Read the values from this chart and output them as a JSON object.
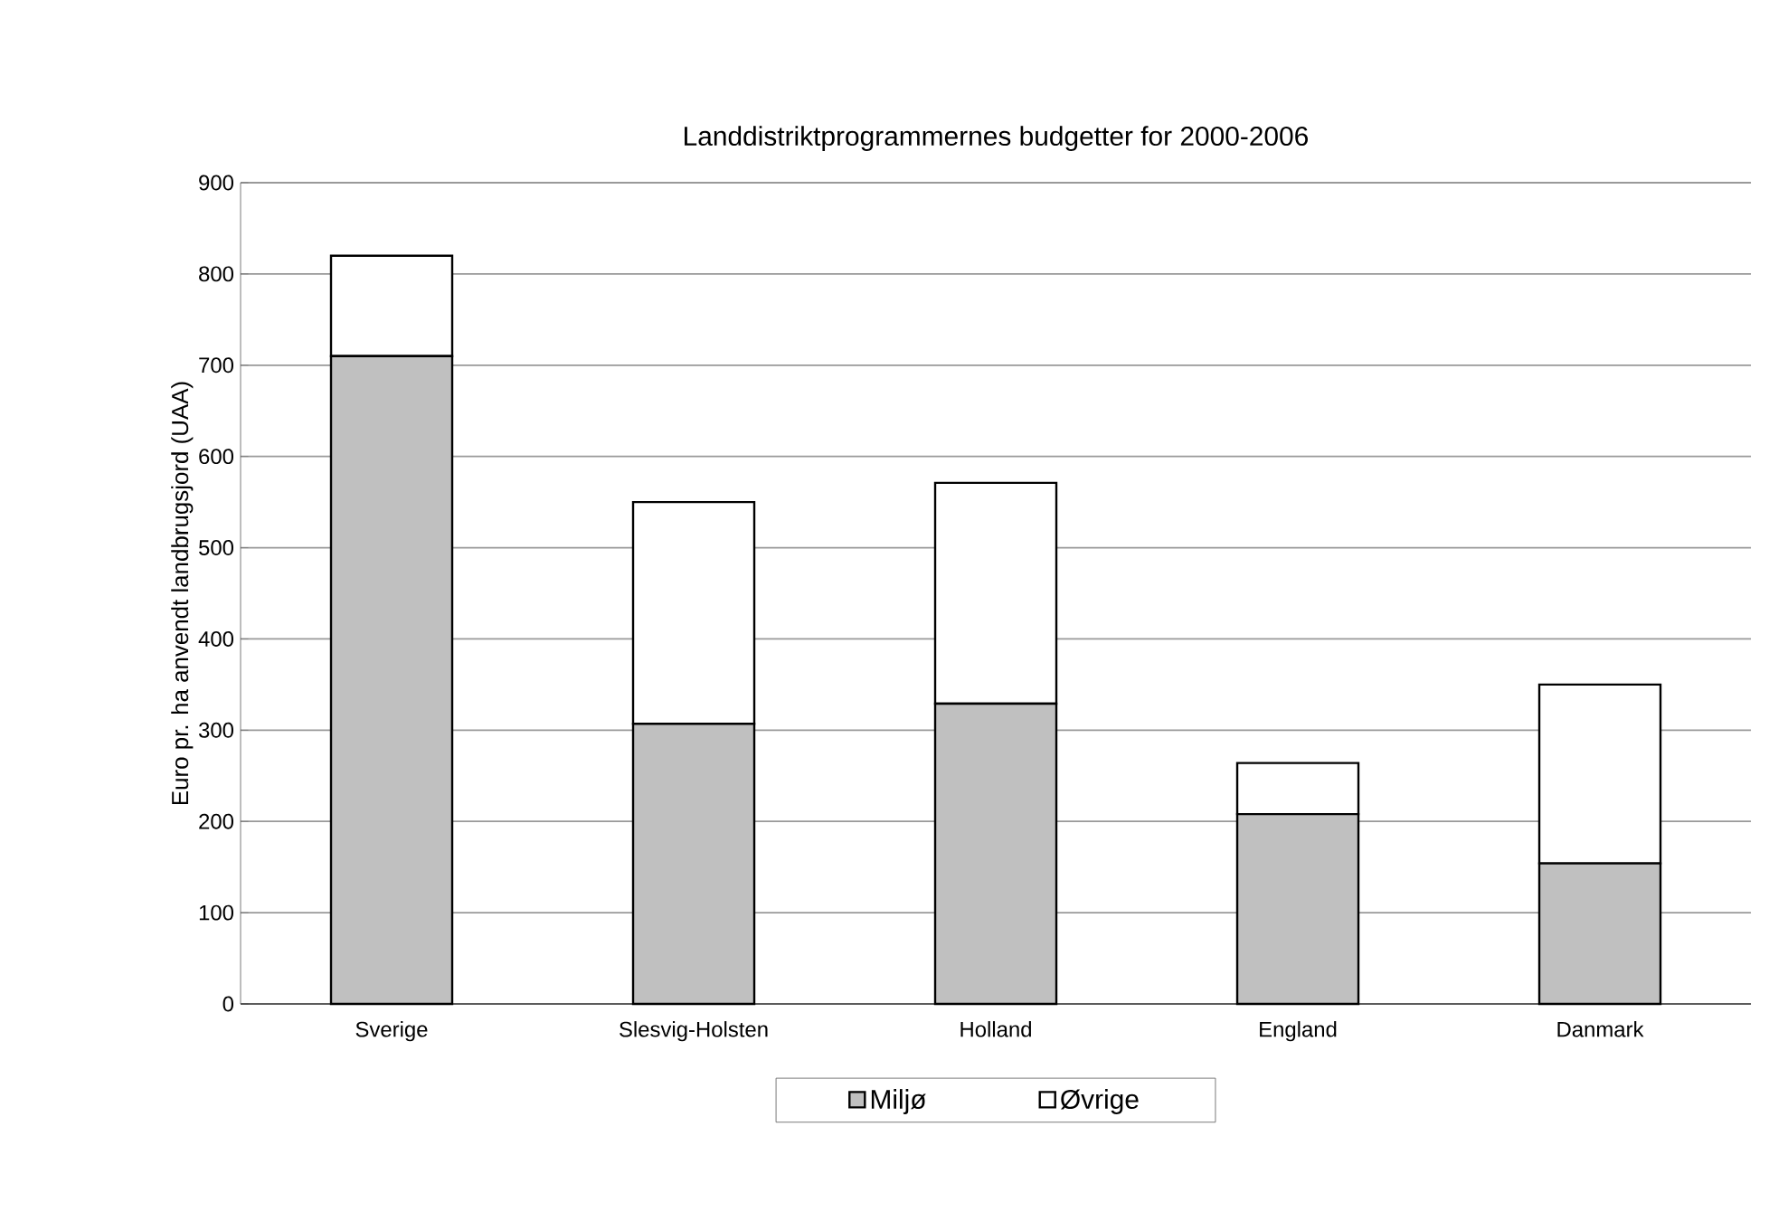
{
  "chart_data": {
    "type": "bar",
    "stacked": true,
    "title": "Landdistriktprogrammernes budgetter for 2000-2006",
    "ylabel": "Euro pr. ha anvendt landbrugsjord (UAA)",
    "categories": [
      "Sverige",
      "Slesvig-Holsten",
      "Holland",
      "England",
      "Danmark"
    ],
    "series": [
      {
        "name": "Miljø",
        "color": "#c0c0c0",
        "values": [
          710,
          307,
          329,
          208,
          154
        ]
      },
      {
        "name": "Øvrige",
        "color": "#ffffff",
        "values": [
          110,
          243,
          242,
          56,
          196
        ]
      }
    ],
    "ylim": [
      0,
      900
    ],
    "yticks": [
      0,
      100,
      200,
      300,
      400,
      500,
      600,
      700,
      800,
      900
    ],
    "grid": "y",
    "legend": "bottom"
  }
}
